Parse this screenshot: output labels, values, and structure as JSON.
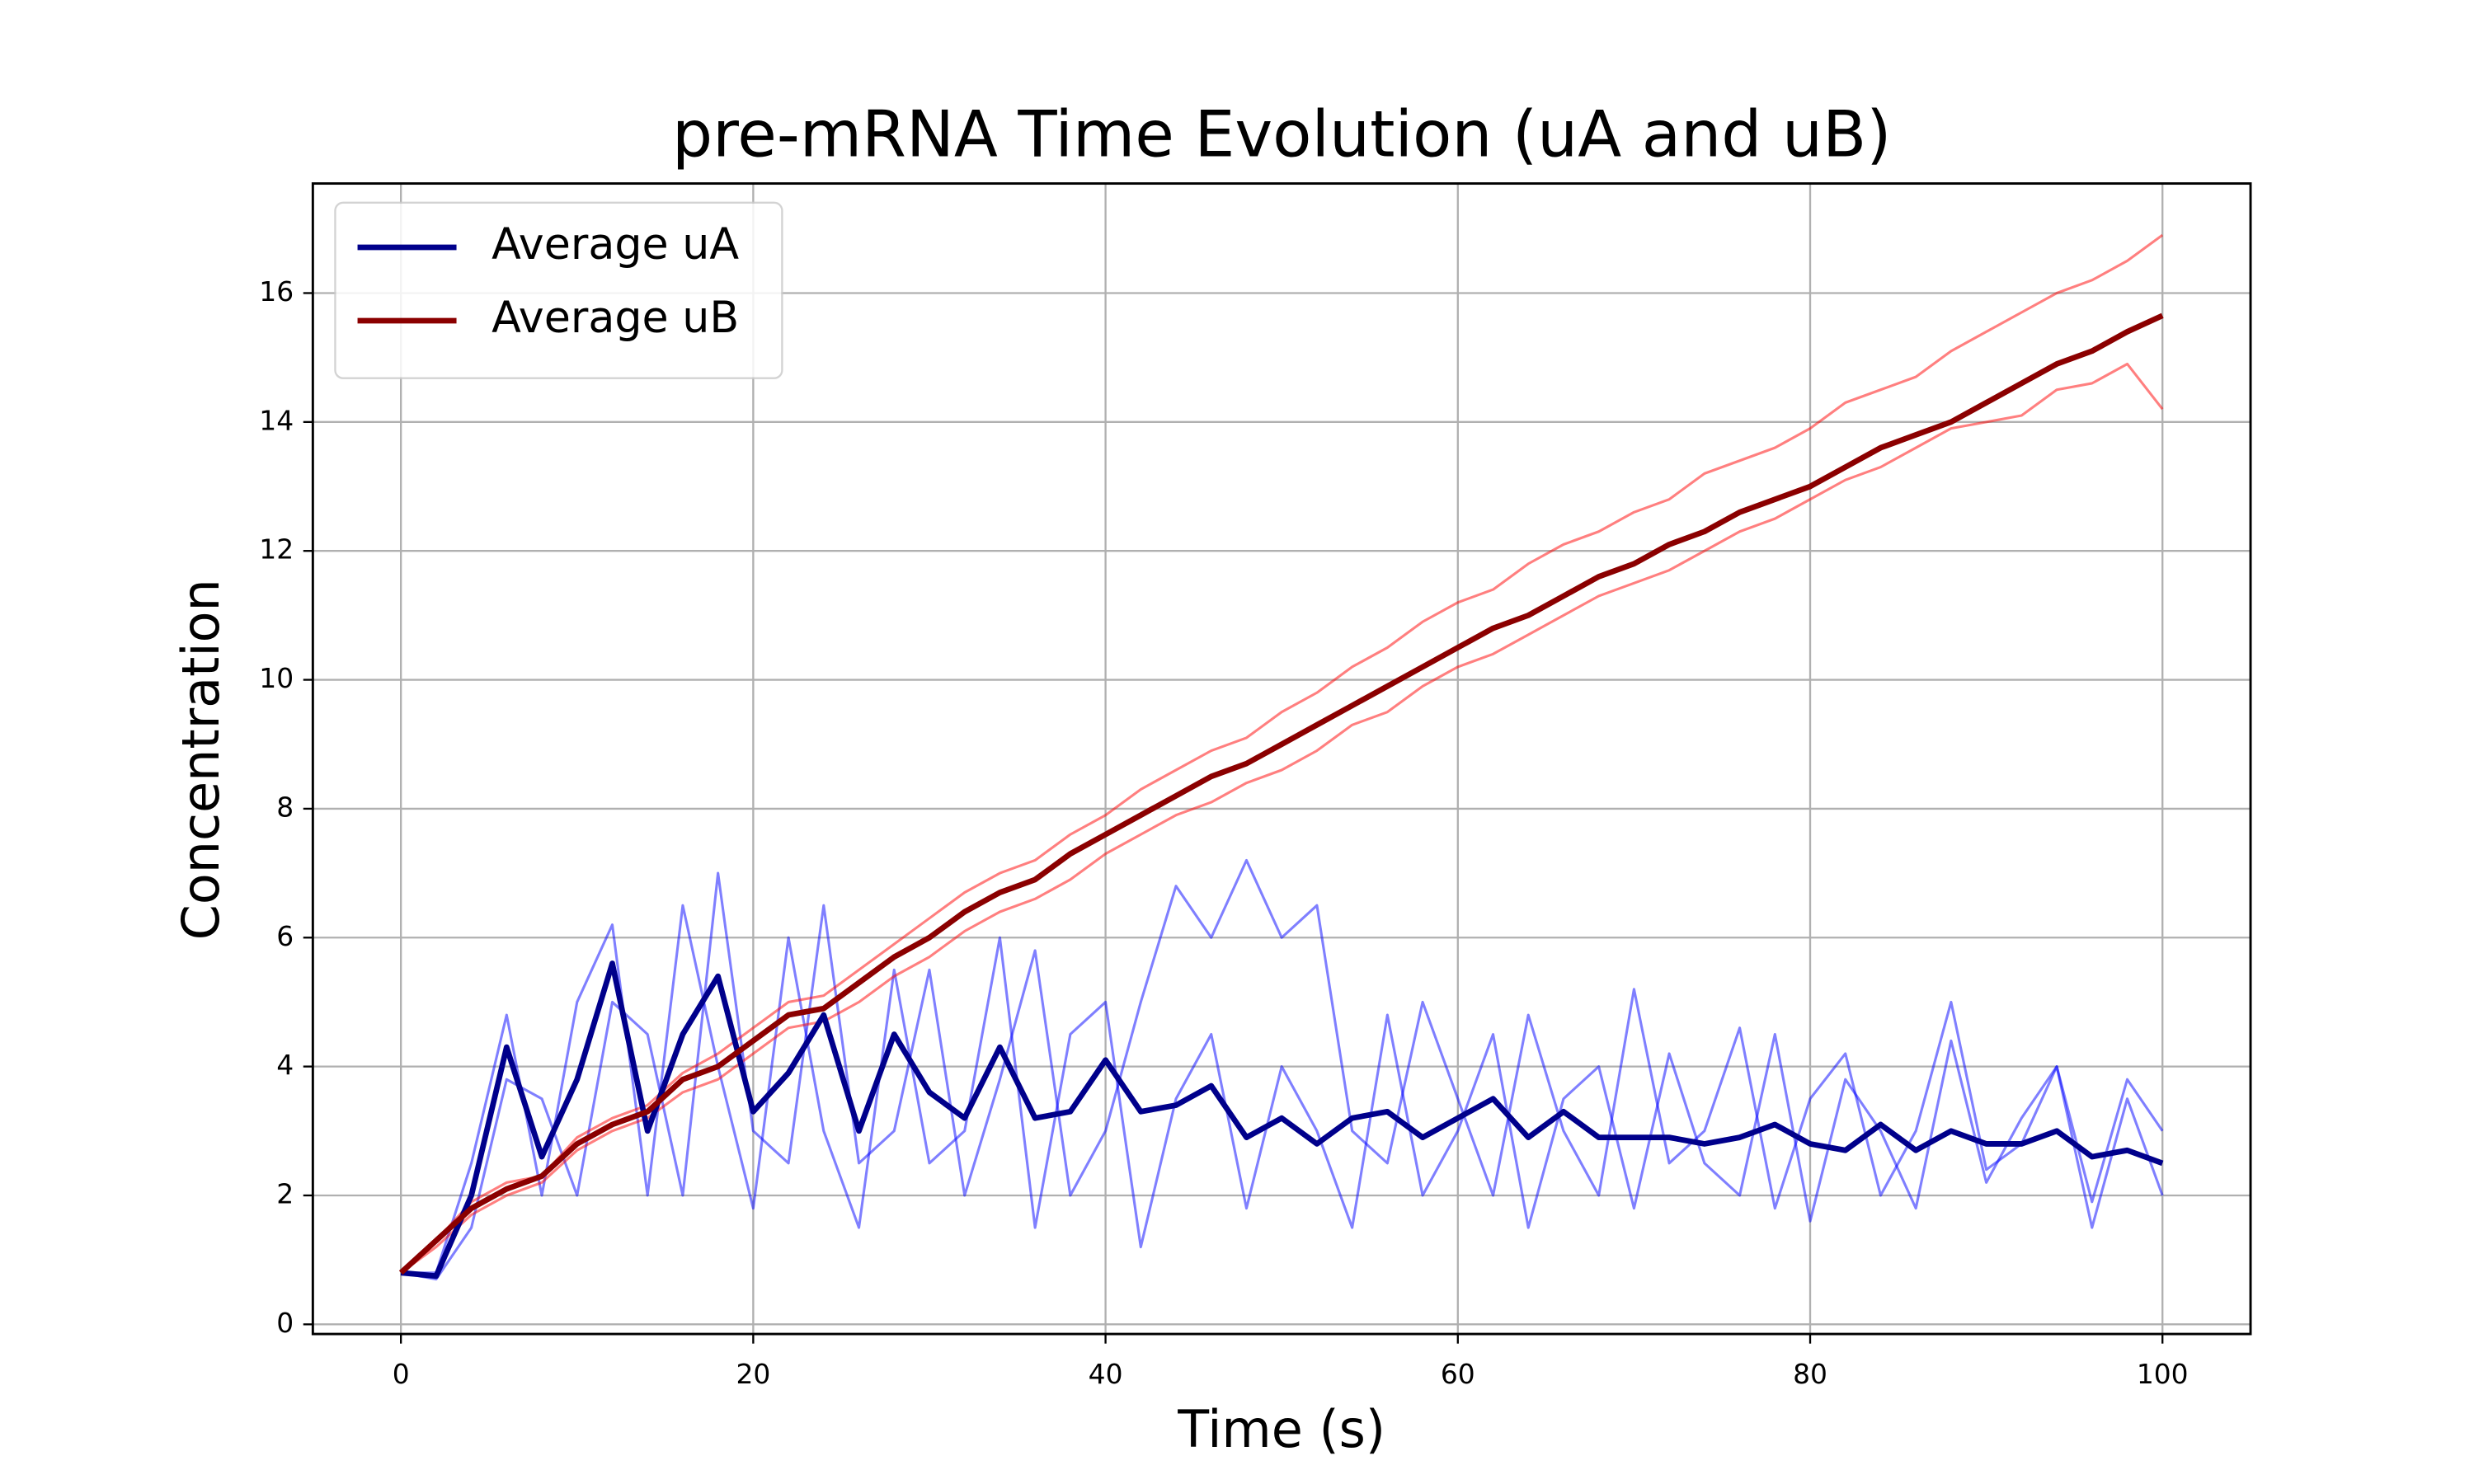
{
  "chart_data": {
    "type": "line",
    "title": "pre-mRNA Time Evolution (uA and uB)",
    "xlabel": "Time (s)",
    "ylabel": "Concentration",
    "x": [
      0,
      2,
      4,
      6,
      8,
      10,
      12,
      14,
      16,
      18,
      20,
      22,
      24,
      26,
      28,
      30,
      32,
      34,
      36,
      38,
      40,
      42,
      44,
      46,
      48,
      50,
      52,
      54,
      56,
      58,
      60,
      62,
      64,
      66,
      68,
      70,
      72,
      74,
      76,
      78,
      80,
      82,
      84,
      86,
      88,
      90,
      92,
      94,
      96,
      98,
      100
    ],
    "series": [
      {
        "color": "#0000ff",
        "values": [
          0.8,
          0.8,
          2.5,
          4.8,
          2.0,
          5.0,
          6.2,
          2.0,
          6.5,
          4.0,
          1.8,
          6.0,
          3.0,
          1.5,
          5.5,
          2.5,
          3.0,
          6.0,
          1.5,
          4.5,
          5.0,
          1.2,
          3.5,
          4.5,
          1.8,
          4.0,
          3.0,
          1.5,
          4.8,
          2.0,
          3.0,
          4.5,
          1.5,
          3.5,
          4.0,
          1.8,
          4.2,
          2.5,
          2.0,
          4.5,
          1.6,
          3.8,
          3.0,
          1.8,
          4.4,
          2.2,
          3.2,
          4.0,
          1.5,
          3.5,
          2.0
        ]
      },
      {
        "color": "#0000ff",
        "values": [
          0.8,
          0.7,
          1.5,
          3.8,
          3.5,
          2.0,
          5.0,
          4.5,
          2.0,
          7.0,
          3.0,
          2.5,
          6.5,
          2.5,
          3.0,
          5.5,
          2.0,
          3.8,
          5.8,
          2.0,
          3.0,
          5.0,
          6.8,
          6.0,
          7.2,
          6.0,
          6.5,
          3.0,
          2.5,
          5.0,
          3.5,
          2.0,
          4.8,
          3.0,
          2.0,
          5.2,
          2.5,
          3.0,
          4.6,
          1.8,
          3.5,
          4.2,
          2.0,
          3.0,
          5.0,
          2.4,
          2.8,
          4.0,
          1.9,
          3.8,
          3.0
        ]
      },
      {
        "color": "#ff0000",
        "values": [
          0.8,
          1.3,
          1.9,
          2.2,
          2.3,
          2.9,
          3.2,
          3.4,
          3.9,
          4.2,
          4.6,
          5.0,
          5.1,
          5.5,
          5.9,
          6.3,
          6.7,
          7.0,
          7.2,
          7.6,
          7.9,
          8.3,
          8.6,
          8.9,
          9.1,
          9.5,
          9.8,
          10.2,
          10.5,
          10.9,
          11.2,
          11.4,
          11.8,
          12.1,
          12.3,
          12.6,
          12.8,
          13.2,
          13.4,
          13.6,
          13.9,
          14.3,
          14.5,
          14.7,
          15.1,
          15.4,
          15.7,
          16.0,
          16.2,
          16.5,
          16.9
        ]
      },
      {
        "color": "#ff0000",
        "values": [
          0.8,
          1.2,
          1.7,
          2.0,
          2.2,
          2.7,
          3.0,
          3.2,
          3.6,
          3.8,
          4.2,
          4.6,
          4.7,
          5.0,
          5.4,
          5.7,
          6.1,
          6.4,
          6.6,
          6.9,
          7.3,
          7.6,
          7.9,
          8.1,
          8.4,
          8.6,
          8.9,
          9.3,
          9.5,
          9.9,
          10.2,
          10.4,
          10.7,
          11.0,
          11.3,
          11.5,
          11.7,
          12.0,
          12.3,
          12.5,
          12.8,
          13.1,
          13.3,
          13.6,
          13.9,
          14.0,
          14.1,
          14.5,
          14.6,
          14.9,
          14.2
        ]
      },
      {
        "name": "Average uA",
        "color": "#00008b",
        "values": [
          0.8,
          0.75,
          2.0,
          4.3,
          2.6,
          3.8,
          5.6,
          3.0,
          4.5,
          5.4,
          3.3,
          3.9,
          4.8,
          3.0,
          4.5,
          3.6,
          3.2,
          4.3,
          3.2,
          3.3,
          4.1,
          3.3,
          3.4,
          3.7,
          2.9,
          3.2,
          2.8,
          3.2,
          3.3,
          2.9,
          3.2,
          3.5,
          2.9,
          3.3,
          2.9,
          2.9,
          2.9,
          2.8,
          2.9,
          3.1,
          2.8,
          2.7,
          3.1,
          2.7,
          3.0,
          2.8,
          2.8,
          3.0,
          2.6,
          2.7,
          2.5
        ]
      },
      {
        "name": "Average uB",
        "color": "#8b0000",
        "values": [
          0.8,
          1.3,
          1.8,
          2.1,
          2.3,
          2.8,
          3.1,
          3.3,
          3.8,
          4.0,
          4.4,
          4.8,
          4.9,
          5.3,
          5.7,
          6.0,
          6.4,
          6.7,
          6.9,
          7.3,
          7.6,
          7.9,
          8.2,
          8.5,
          8.7,
          9.0,
          9.3,
          9.6,
          9.9,
          10.2,
          10.5,
          10.8,
          11.0,
          11.3,
          11.6,
          11.8,
          12.1,
          12.3,
          12.6,
          12.8,
          13.0,
          13.3,
          13.6,
          13.8,
          14.0,
          14.3,
          14.6,
          14.9,
          15.1,
          15.4,
          15.65
        ]
      }
    ],
    "xlim": [
      -5,
      105
    ],
    "xticks": [
      0,
      20,
      40,
      60,
      80,
      100
    ],
    "ylim": [
      -0.15,
      17.7
    ],
    "yticks": [
      0,
      2,
      4,
      6,
      8,
      10,
      12,
      14,
      16
    ],
    "grid": true,
    "legend": "upper left"
  }
}
